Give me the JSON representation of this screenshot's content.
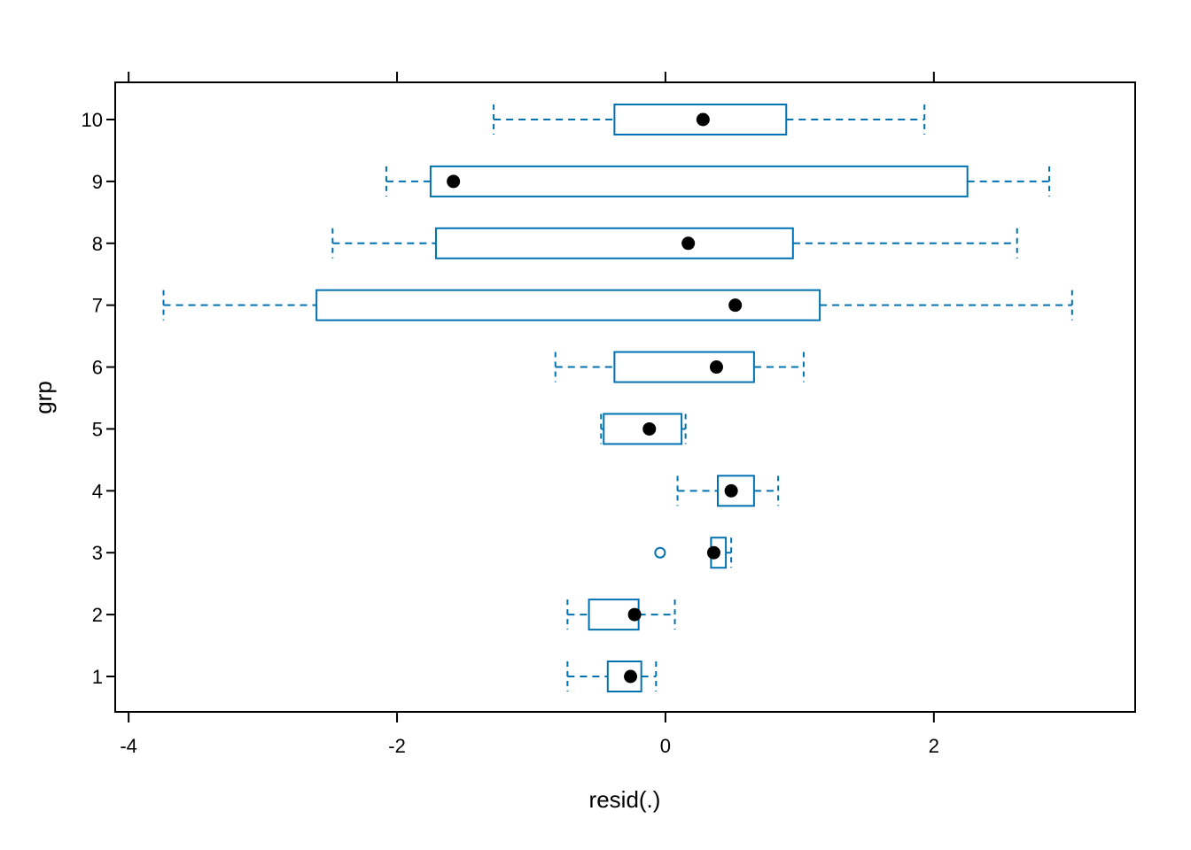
{
  "chart_data": {
    "type": "boxplot",
    "orientation": "horizontal",
    "xlabel": "resid(.)",
    "ylabel": "grp",
    "xlim": [
      -4.1,
      3.5
    ],
    "xticks": [
      -4,
      -2,
      0,
      2
    ],
    "xtick_labels": [
      "-4",
      "-2",
      "0",
      "2"
    ],
    "categories": [
      "1",
      "2",
      "3",
      "4",
      "5",
      "6",
      "7",
      "8",
      "9",
      "10"
    ],
    "box_color": "#0072b2",
    "median_color": "#000000",
    "boxes": [
      {
        "group": "1",
        "whisker_low": -0.73,
        "q1": -0.43,
        "median": -0.26,
        "q3": -0.18,
        "whisker_high": -0.07,
        "outliers": []
      },
      {
        "group": "2",
        "whisker_low": -0.73,
        "q1": -0.57,
        "median": -0.23,
        "q3": -0.2,
        "whisker_high": 0.07,
        "outliers": []
      },
      {
        "group": "3",
        "whisker_low": 0.34,
        "q1": 0.34,
        "median": 0.36,
        "q3": 0.45,
        "whisker_high": 0.49,
        "outliers": [
          -0.04
        ]
      },
      {
        "group": "4",
        "whisker_low": 0.09,
        "q1": 0.39,
        "median": 0.49,
        "q3": 0.66,
        "whisker_high": 0.84,
        "outliers": []
      },
      {
        "group": "5",
        "whisker_low": -0.48,
        "q1": -0.46,
        "median": -0.12,
        "q3": 0.12,
        "whisker_high": 0.15,
        "outliers": []
      },
      {
        "group": "6",
        "whisker_low": -0.82,
        "q1": -0.38,
        "median": 0.38,
        "q3": 0.66,
        "whisker_high": 1.03,
        "outliers": []
      },
      {
        "group": "7",
        "whisker_low": -3.74,
        "q1": -2.6,
        "median": 0.52,
        "q3": 1.15,
        "whisker_high": 3.03,
        "outliers": []
      },
      {
        "group": "8",
        "whisker_low": -2.48,
        "q1": -1.71,
        "median": 0.17,
        "q3": 0.95,
        "whisker_high": 2.62,
        "outliers": []
      },
      {
        "group": "9",
        "whisker_low": -2.08,
        "q1": -1.75,
        "median": -1.58,
        "q3": 2.25,
        "whisker_high": 2.86,
        "outliers": []
      },
      {
        "group": "10",
        "whisker_low": -1.28,
        "q1": -0.38,
        "median": 0.28,
        "q3": 0.9,
        "whisker_high": 1.93,
        "outliers": []
      }
    ]
  }
}
